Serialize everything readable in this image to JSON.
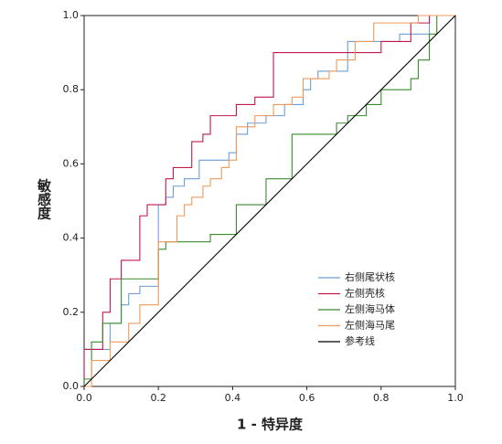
{
  "chart_data": {
    "type": "line",
    "xlabel": "1 - 特异度",
    "ylabel": "敏感度",
    "xlim": [
      0,
      1
    ],
    "ylim": [
      0,
      1
    ],
    "xticks": [
      {
        "value": 0,
        "label": "0.0"
      },
      0.2,
      0.4,
      0.6,
      0.8,
      {
        "value": 1,
        "label": "1.0"
      }
    ],
    "yticks": [
      {
        "value": 0,
        "label": "0.0"
      },
      0.2,
      0.4,
      0.6,
      0.8,
      {
        "value": 1,
        "label": "1.0"
      }
    ],
    "grid": false,
    "legend": "lower right",
    "series": [
      {
        "name": "右侧尾状核",
        "color": "#6a9fd8",
        "x": [
          0,
          0,
          0.07,
          0.07,
          0.1,
          0.1,
          0.12,
          0.12,
          0.15,
          0.15,
          0.2,
          0.2,
          0.22,
          0.22,
          0.24,
          0.24,
          0.27,
          0.27,
          0.31,
          0.31,
          0.39,
          0.39,
          0.41,
          0.41,
          0.44,
          0.44,
          0.49,
          0.49,
          0.54,
          0.54,
          0.59,
          0.59,
          0.61,
          0.61,
          0.63,
          0.63,
          0.71,
          0.71,
          0.85,
          0.85,
          0.93,
          0.93,
          1
        ],
        "values": [
          0,
          0.1,
          0.1,
          0.17,
          0.17,
          0.22,
          0.22,
          0.25,
          0.25,
          0.27,
          0.27,
          0.49,
          0.49,
          0.51,
          0.51,
          0.54,
          0.54,
          0.56,
          0.56,
          0.61,
          0.61,
          0.63,
          0.63,
          0.68,
          0.68,
          0.71,
          0.71,
          0.73,
          0.73,
          0.76,
          0.76,
          0.8,
          0.8,
          0.83,
          0.83,
          0.85,
          0.85,
          0.93,
          0.93,
          0.95,
          0.95,
          1,
          1
        ]
      },
      {
        "name": "左侧壳核",
        "color": "#c0194b",
        "x": [
          0,
          0,
          0.05,
          0.05,
          0.07,
          0.07,
          0.1,
          0.1,
          0.15,
          0.15,
          0.17,
          0.17,
          0.22,
          0.22,
          0.24,
          0.24,
          0.29,
          0.29,
          0.32,
          0.32,
          0.34,
          0.34,
          0.41,
          0.41,
          0.46,
          0.46,
          0.51,
          0.51,
          0.8,
          0.8,
          0.88,
          0.88,
          0.93,
          0.93,
          1
        ],
        "values": [
          0,
          0.1,
          0.1,
          0.2,
          0.2,
          0.29,
          0.29,
          0.34,
          0.34,
          0.46,
          0.46,
          0.49,
          0.49,
          0.56,
          0.56,
          0.59,
          0.59,
          0.66,
          0.66,
          0.68,
          0.68,
          0.73,
          0.73,
          0.76,
          0.76,
          0.78,
          0.78,
          0.9,
          0.9,
          0.93,
          0.93,
          0.98,
          0.98,
          1,
          1
        ]
      },
      {
        "name": "左侧海马体",
        "color": "#3a8a2e",
        "x": [
          0,
          0,
          0.02,
          0.02,
          0.05,
          0.05,
          0.1,
          0.1,
          0.2,
          0.2,
          0.22,
          0.22,
          0.34,
          0.34,
          0.41,
          0.41,
          0.49,
          0.49,
          0.56,
          0.56,
          0.68,
          0.68,
          0.71,
          0.71,
          0.76,
          0.76,
          0.8,
          0.8,
          0.88,
          0.88,
          0.9,
          0.9,
          0.93,
          0.93,
          0.95,
          0.95,
          1
        ],
        "values": [
          0,
          0.02,
          0.02,
          0.12,
          0.12,
          0.17,
          0.17,
          0.29,
          0.29,
          0.37,
          0.37,
          0.39,
          0.39,
          0.41,
          0.41,
          0.49,
          0.49,
          0.56,
          0.56,
          0.68,
          0.68,
          0.71,
          0.71,
          0.73,
          0.73,
          0.76,
          0.76,
          0.8,
          0.8,
          0.83,
          0.83,
          0.88,
          0.88,
          0.95,
          0.95,
          1,
          1
        ]
      },
      {
        "name": "左侧海马尾",
        "color": "#f09a5a",
        "x": [
          0,
          0.02,
          0.02,
          0.07,
          0.07,
          0.12,
          0.12,
          0.15,
          0.15,
          0.2,
          0.2,
          0.25,
          0.25,
          0.27,
          0.27,
          0.29,
          0.29,
          0.32,
          0.32,
          0.34,
          0.34,
          0.37,
          0.37,
          0.39,
          0.39,
          0.41,
          0.41,
          0.46,
          0.46,
          0.51,
          0.51,
          0.56,
          0.56,
          0.59,
          0.59,
          0.66,
          0.66,
          0.68,
          0.68,
          0.73,
          0.73,
          0.78,
          0.78,
          0.9,
          0.9,
          1
        ],
        "values": [
          0,
          0,
          0.07,
          0.07,
          0.12,
          0.12,
          0.17,
          0.17,
          0.22,
          0.22,
          0.39,
          0.39,
          0.46,
          0.46,
          0.49,
          0.49,
          0.51,
          0.51,
          0.54,
          0.54,
          0.56,
          0.56,
          0.59,
          0.59,
          0.61,
          0.61,
          0.7,
          0.7,
          0.73,
          0.73,
          0.76,
          0.76,
          0.78,
          0.78,
          0.83,
          0.83,
          0.85,
          0.85,
          0.88,
          0.88,
          0.93,
          0.93,
          0.98,
          0.98,
          1,
          1
        ]
      },
      {
        "name": "参考线",
        "color": "#000000",
        "x": [
          0,
          1
        ],
        "values": [
          0,
          1
        ]
      }
    ]
  }
}
